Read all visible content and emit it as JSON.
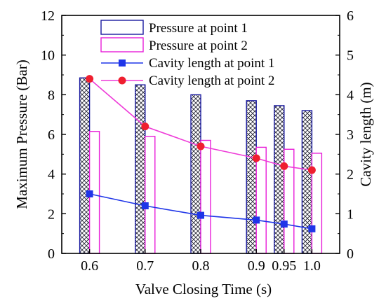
{
  "chart_data": {
    "type": "bar+line",
    "xlabel": "Valve Closing  Time (s)",
    "ylabel_left": "Maximum Pressure (Bar)",
    "ylabel_right": "Cavity  length (m)",
    "x_ticks": [
      "0.6",
      "0.7",
      "0.8",
      "0.9",
      "0.95",
      "1.0"
    ],
    "x_tick_values": [
      0.6,
      0.7,
      0.8,
      0.9,
      0.95,
      1.0
    ],
    "xlim": [
      0.55,
      1.05
    ],
    "ylim_left": [
      0,
      12
    ],
    "ylim_right": [
      0,
      6
    ],
    "left_ticks": [
      "0",
      "2",
      "4",
      "6",
      "8",
      "10",
      "12"
    ],
    "right_ticks": [
      "0",
      "1",
      "2",
      "3",
      "4",
      "5",
      "6"
    ],
    "x": [
      0.6,
      0.7,
      0.8,
      0.9,
      0.95,
      1.0
    ],
    "bar_series": [
      {
        "name": "Pressure  at point 1",
        "axis": "left",
        "color": "#1a1aa0",
        "pattern": "crosshatch",
        "values": [
          8.85,
          8.5,
          8.0,
          7.7,
          7.45,
          7.2
        ]
      },
      {
        "name": "Pressure  at point 2",
        "axis": "left",
        "color": "#e81ed8",
        "pattern": "none",
        "values": [
          6.15,
          5.9,
          5.7,
          5.35,
          5.25,
          5.05
        ]
      }
    ],
    "line_series": [
      {
        "name": "Cavity  length  at point 1",
        "axis": "right",
        "color": "#1f35e8",
        "marker": "square",
        "values": [
          1.5,
          1.2,
          0.96,
          0.84,
          0.74,
          0.62
        ]
      },
      {
        "name": "Cavity  length  at point 2",
        "axis": "right",
        "color": "#ee3ad8",
        "marker": "circle",
        "values": [
          4.4,
          3.2,
          2.7,
          2.4,
          2.2,
          2.1
        ]
      }
    ],
    "legend_position": "top-center",
    "grid": false
  }
}
